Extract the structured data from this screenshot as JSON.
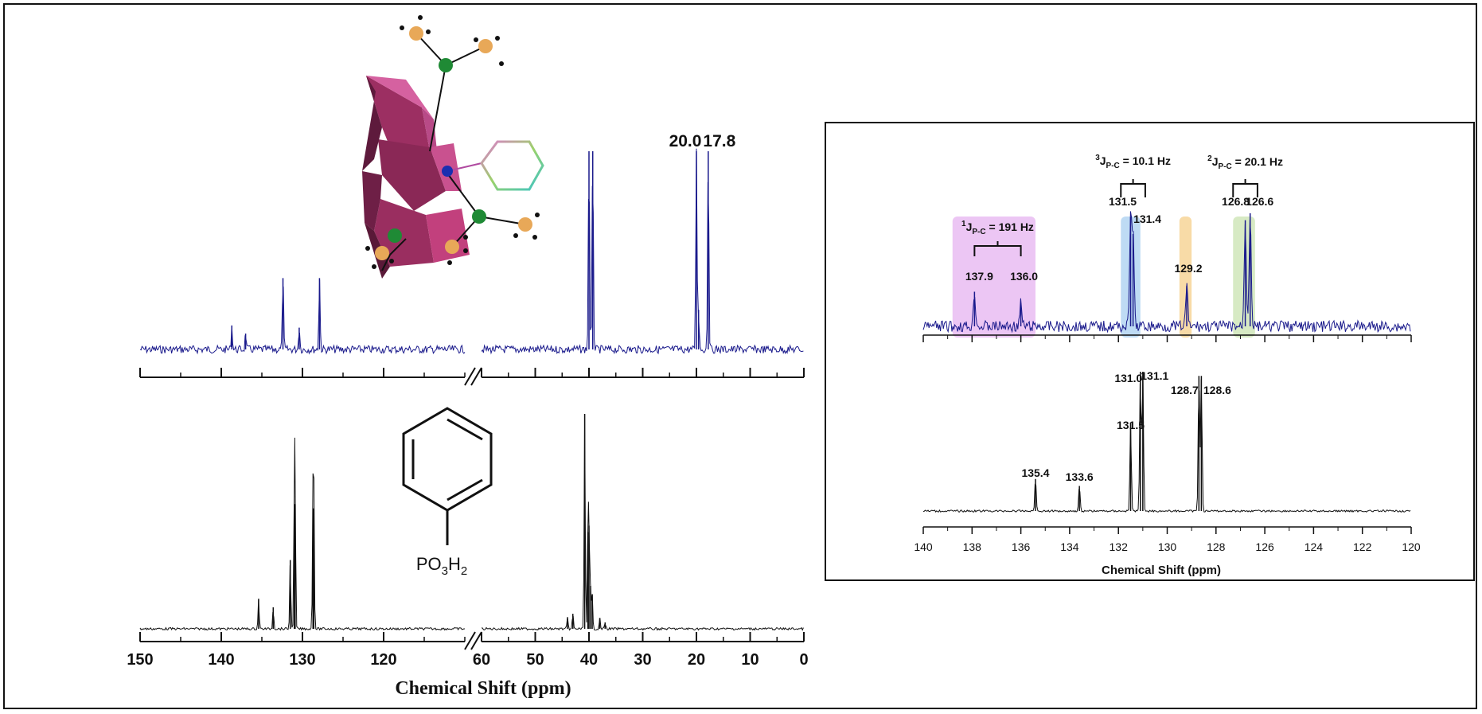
{
  "colors": {
    "top_spectrum": "#1a1a8c",
    "bottom_spectrum": "#111111",
    "axis": "#111111",
    "polyhedron": "#c2407d",
    "hl_pink": "#e6b3f0",
    "hl_blue": "#a8cff0",
    "hl_orange": "#f5cf8a",
    "hl_green": "#c9e3b0"
  },
  "chart_data": [
    {
      "type": "line",
      "name": "main-broken-axis-spectra",
      "xlabel": "Chemical Shift (ppm)",
      "x_axis_ticks": [
        "150",
        "140",
        "130",
        "120",
        "60",
        "50",
        "40",
        "30",
        "20",
        "10",
        "0"
      ],
      "x_axis_segments": [
        {
          "xlim": [
            150,
            110
          ]
        },
        {
          "xlim": [
            60,
            0
          ]
        }
      ],
      "series": [
        {
          "spectrum": "top",
          "peaks": [
            {
              "x": 138.7,
              "height": 0.12
            },
            {
              "x": 137.0,
              "height": 0.08
            },
            {
              "x": 132.4,
              "height": 0.36
            },
            {
              "x": 130.4,
              "height": 0.11
            },
            {
              "x": 127.9,
              "height": 0.36
            },
            {
              "x": 40.0,
              "height": 1.0
            },
            {
              "x": 39.3,
              "height": 1.0
            },
            {
              "x": 20.0,
              "height": 1.0
            },
            {
              "x": 19.6,
              "height": 0.2
            },
            {
              "x": 17.8,
              "height": 1.0
            }
          ],
          "peak_labels": [
            "20.0",
            "17.8"
          ]
        },
        {
          "spectrum": "bottom",
          "peaks": [
            {
              "x": 135.4,
              "height": 0.14
            },
            {
              "x": 133.6,
              "height": 0.1
            },
            {
              "x": 131.5,
              "height": 0.32
            },
            {
              "x": 131.0,
              "height": 0.58
            },
            {
              "x": 130.9,
              "height": 0.58
            },
            {
              "x": 128.7,
              "height": 0.56
            },
            {
              "x": 128.6,
              "height": 0.56
            },
            {
              "x": 44.0,
              "height": 0.05
            },
            {
              "x": 43.0,
              "height": 0.07
            },
            {
              "x": 40.8,
              "height": 1.0
            },
            {
              "x": 40.2,
              "height": 0.45
            },
            {
              "x": 40.0,
              "height": 0.48
            },
            {
              "x": 39.7,
              "height": 0.2
            },
            {
              "x": 39.4,
              "height": 0.16
            },
            {
              "x": 38.0,
              "height": 0.05
            },
            {
              "x": 37.0,
              "height": 0.03
            }
          ]
        }
      ],
      "structure_label": {
        "base": "PO",
        "sub1": "3",
        "mid": "H",
        "sub2": "2"
      }
    },
    {
      "type": "line",
      "name": "inset-expansion",
      "xlabel": "Chemical Shift (ppm)",
      "xlim": [
        140,
        120
      ],
      "x_ticks": [
        140,
        138,
        136,
        134,
        132,
        130,
        128,
        126,
        124,
        122,
        120
      ],
      "x_tick_labels": [
        "140",
        "138",
        "136",
        "134",
        "132",
        "130",
        "128",
        "126",
        "124",
        "122",
        "120"
      ],
      "series": [
        {
          "spectrum": "top",
          "peaks": [
            {
              "x": 137.9,
              "height": 0.3
            },
            {
              "x": 136.0,
              "height": 0.2
            },
            {
              "x": 131.5,
              "height": 0.95
            },
            {
              "x": 131.4,
              "height": 0.8
            },
            {
              "x": 129.2,
              "height": 0.35
            },
            {
              "x": 126.8,
              "height": 0.92
            },
            {
              "x": 126.6,
              "height": 0.98
            }
          ],
          "peak_labels": [
            {
              "text": "137.9",
              "x": 137.9
            },
            {
              "text": "136.0",
              "x": 136.0
            },
            {
              "text": "131.5",
              "x": 131.5
            },
            {
              "text": "131.4",
              "x": 131.4
            },
            {
              "text": "129.2",
              "x": 129.2
            },
            {
              "text": "126.8",
              "x": 126.8
            },
            {
              "text": "126.6",
              "x": 126.6
            }
          ],
          "highlights": [
            {
              "from": 138.8,
              "to": 135.4,
              "color": "hl_pink"
            },
            {
              "from": 131.9,
              "to": 131.1,
              "color": "hl_blue"
            },
            {
              "from": 129.5,
              "to": 129.0,
              "color": "hl_orange"
            },
            {
              "from": 127.3,
              "to": 126.4,
              "color": "hl_green"
            }
          ],
          "couplings": [
            {
              "sup": "1",
              "sub": "P-C",
              "value": " = 191 Hz",
              "from": 137.9,
              "to": 136.0
            },
            {
              "sup": "3",
              "sub": "P-C",
              "value": " = 10.1 Hz",
              "from": 131.9,
              "to": 130.9
            },
            {
              "sup": "2",
              "sub": "P-C",
              "value": " = 20.1 Hz",
              "from": 127.3,
              "to": 126.3
            }
          ]
        },
        {
          "spectrum": "bottom",
          "peaks": [
            {
              "x": 135.4,
              "height": 0.23
            },
            {
              "x": 133.6,
              "height": 0.18
            },
            {
              "x": 131.5,
              "height": 0.63
            },
            {
              "x": 131.1,
              "height": 1.0
            },
            {
              "x": 131.0,
              "height": 1.0
            },
            {
              "x": 128.7,
              "height": 0.97
            },
            {
              "x": 128.6,
              "height": 0.97
            }
          ],
          "peak_labels": [
            {
              "text": "135.4",
              "x": 135.4
            },
            {
              "text": "133.6",
              "x": 133.6
            },
            {
              "text": "131.5",
              "x": 131.5
            },
            {
              "text": "131.0",
              "x": 131.0
            },
            {
              "text": "131.1",
              "x": 131.1
            },
            {
              "text": "128.7",
              "x": 128.7
            },
            {
              "text": "128.6",
              "x": 128.6
            }
          ]
        }
      ]
    }
  ]
}
